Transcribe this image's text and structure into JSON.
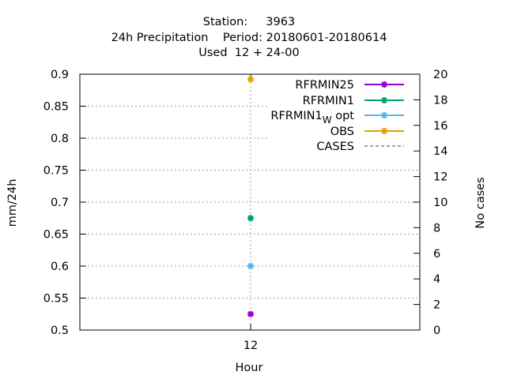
{
  "chart_data": {
    "type": "scatter",
    "title_lines": [
      "Station:     3963",
      "24h Precipitation    Period: 20180601-20180614",
      "Used  12 + 24-00"
    ],
    "xlabel": "Hour",
    "ylabel": "mm/24h",
    "y2label": "No cases",
    "x_categories": [
      "12"
    ],
    "ylim": [
      0.5,
      0.9
    ],
    "yticks": [
      "0.5",
      "0.55",
      "0.6",
      "0.65",
      "0.7",
      "0.75",
      "0.8",
      "0.85",
      "0.9"
    ],
    "y2lim": [
      0,
      20
    ],
    "y2ticks": [
      "0",
      "2",
      "4",
      "6",
      "8",
      "10",
      "12",
      "14",
      "16",
      "18",
      "20"
    ],
    "grid": true,
    "legend_position": "top-right",
    "series": [
      {
        "name": "RFRMIN25",
        "color": "#9400d3",
        "marker": "star",
        "x": "12",
        "y": 0.525
      },
      {
        "name": "RFRMIN1",
        "color": "#009e73",
        "marker": "star",
        "x": "12",
        "y": 0.675
      },
      {
        "name_main": "RFRMIN1",
        "name_sub": "W",
        "name_tail": " opt",
        "color": "#56b4e9",
        "marker": "star",
        "x": "12",
        "y": 0.6
      },
      {
        "name": "OBS",
        "color": "#e69f00",
        "marker": "star",
        "x": "12",
        "y": 0.892
      },
      {
        "name": "CASES",
        "color": "#808080",
        "marker": "dashed-line",
        "x": "12",
        "y": null
      }
    ]
  }
}
